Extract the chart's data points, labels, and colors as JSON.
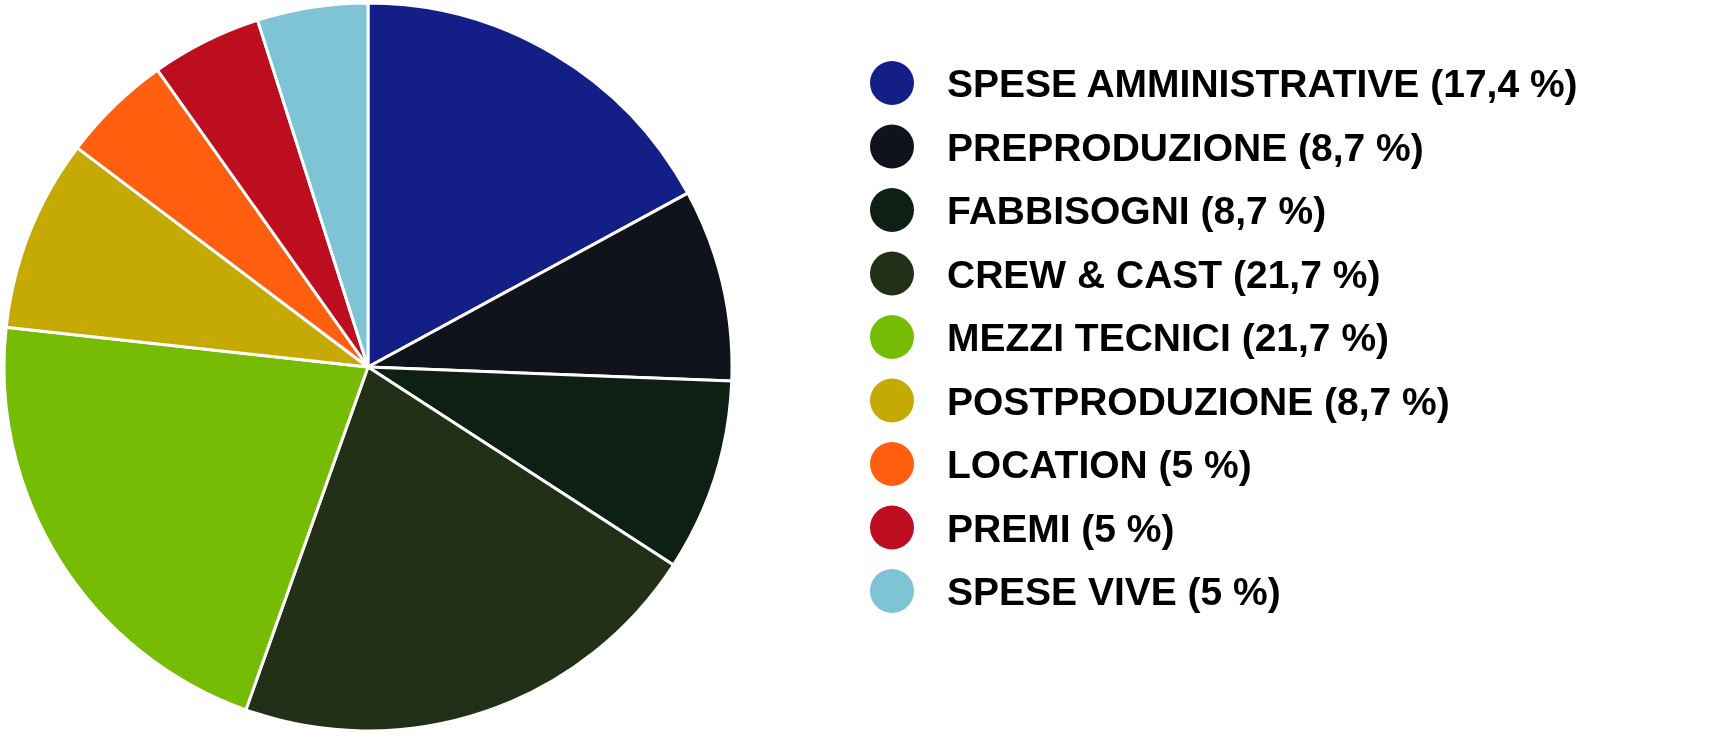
{
  "chart_data": {
    "type": "pie",
    "categories": [
      "SPESE AMMINISTRATIVE (17,4 %)",
      "PREPRODUZIONE (8,7 %)",
      "FABBISOGNI (8,7 %)",
      "CREW & CAST (21,7 %)",
      "MEZZI TECNICI (21,7 %)",
      "POSTPRODUZIONE (8,7 %)",
      "LOCATION (5 %)",
      "PREMI (5 %)",
      "SPESE VIVE (5 %)"
    ],
    "values": [
      17.4,
      8.7,
      8.7,
      21.7,
      21.7,
      8.7,
      5,
      5,
      5
    ],
    "colors": [
      "#131f87",
      "#10131c",
      "#0e1f14",
      "#233018",
      "#76bc05",
      "#c5a904",
      "#ff5f0f",
      "#bd0e20",
      "#7fc4d4"
    ],
    "legend": "right"
  }
}
